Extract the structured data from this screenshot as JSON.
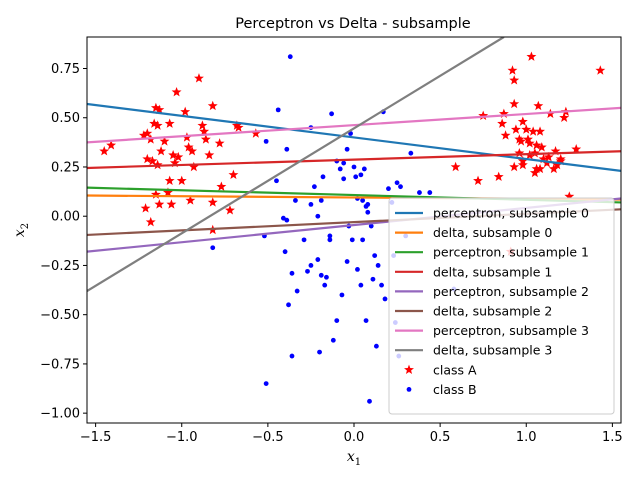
{
  "chart_data": {
    "type": "scatter",
    "title": "Perceptron vs Delta - subsample",
    "xlabel": "x",
    "xlabel_sub": "1",
    "ylabel": "x",
    "ylabel_sub": "2",
    "xlim": [
      -1.55,
      1.55
    ],
    "ylim": [
      -1.05,
      0.91
    ],
    "x_ticks": [
      -1.5,
      -1.0,
      -0.5,
      0.0,
      0.5,
      1.0,
      1.5
    ],
    "x_tick_labels": [
      "−1.5",
      "−1.0",
      "−0.5",
      "0.0",
      "0.5",
      "1.0",
      "1.5"
    ],
    "y_ticks": [
      -1.0,
      -0.75,
      -0.5,
      -0.25,
      0.0,
      0.25,
      0.5,
      0.75
    ],
    "y_tick_labels": [
      "−1.00",
      "−0.75",
      "−0.50",
      "−0.25",
      "0.00",
      "0.25",
      "0.50",
      "0.75"
    ],
    "grid": false,
    "legend_position": "lower-right",
    "lines": [
      {
        "name": "perceptron, subsample 0",
        "color": "#1f77b4",
        "x": [
          -1.55,
          1.55
        ],
        "y": [
          0.57,
          0.23
        ]
      },
      {
        "name": "delta, subsample 0",
        "color": "#ff7f0e",
        "x": [
          -1.55,
          1.55
        ],
        "y": [
          0.105,
          0.085
        ]
      },
      {
        "name": "perceptron, subsample 1",
        "color": "#2ca02c",
        "x": [
          -1.55,
          1.55
        ],
        "y": [
          0.145,
          0.07
        ]
      },
      {
        "name": "delta, subsample 1",
        "color": "#d62728",
        "x": [
          -1.55,
          1.55
        ],
        "y": [
          0.245,
          0.33
        ]
      },
      {
        "name": "perceptron, subsample 2",
        "color": "#9467bd",
        "x": [
          -1.55,
          1.55
        ],
        "y": [
          -0.18,
          0.09
        ]
      },
      {
        "name": "delta, subsample 2",
        "color": "#8c564b",
        "x": [
          -1.55,
          1.55
        ],
        "y": [
          -0.095,
          0.035
        ]
      },
      {
        "name": "perceptron, subsample 3",
        "color": "#e377c2",
        "x": [
          -1.55,
          1.55
        ],
        "y": [
          0.375,
          0.55
        ]
      },
      {
        "name": "delta, subsample 3",
        "color": "#7f7f7f",
        "x": [
          -1.55,
          0.87
        ],
        "y": [
          -0.38,
          0.91
        ]
      }
    ],
    "series": [
      {
        "name": "class A",
        "marker": "star",
        "color": "#ff0000",
        "points": [
          [
            -1.45,
            0.33
          ],
          [
            -1.41,
            0.36
          ],
          [
            -1.22,
            0.41
          ],
          [
            -1.2,
            0.42
          ],
          [
            -1.18,
            0.39
          ],
          [
            -1.16,
            0.47
          ],
          [
            -1.15,
            0.55
          ],
          [
            -1.13,
            0.54
          ],
          [
            -1.14,
            0.46
          ],
          [
            -1.12,
            0.33
          ],
          [
            -1.2,
            0.29
          ],
          [
            -1.17,
            0.28
          ],
          [
            -1.14,
            0.26
          ],
          [
            -1.07,
            0.47
          ],
          [
            -1.03,
            0.63
          ],
          [
            -0.98,
            0.53
          ],
          [
            -0.97,
            0.4
          ],
          [
            -0.96,
            0.35
          ],
          [
            -0.94,
            0.33
          ],
          [
            -0.9,
            0.7
          ],
          [
            -0.88,
            0.46
          ],
          [
            -0.87,
            0.43
          ],
          [
            -0.86,
            0.39
          ],
          [
            -0.84,
            0.31
          ],
          [
            -0.82,
            0.56
          ],
          [
            -0.78,
            0.37
          ],
          [
            -0.77,
            0.15
          ],
          [
            -0.72,
            0.03
          ],
          [
            -0.7,
            0.21
          ],
          [
            -0.68,
            0.46
          ],
          [
            -0.67,
            0.45
          ],
          [
            -0.57,
            0.42
          ],
          [
            -1.05,
            0.31
          ],
          [
            -1.04,
            0.27
          ],
          [
            -1.02,
            0.3
          ],
          [
            -1.0,
            0.18
          ],
          [
            -1.07,
            0.18
          ],
          [
            -1.08,
            0.12
          ],
          [
            -1.06,
            0.06
          ],
          [
            -1.13,
            0.06
          ],
          [
            -1.15,
            0.11
          ],
          [
            -1.18,
            -0.03
          ],
          [
            -1.21,
            0.04
          ],
          [
            -0.93,
            0.25
          ],
          [
            -0.82,
            0.07
          ],
          [
            -0.82,
            -0.07
          ],
          [
            -1.1,
            0.38
          ],
          [
            -0.95,
            0.08
          ],
          [
            0.59,
            0.25
          ],
          [
            0.72,
            0.18
          ],
          [
            0.75,
            0.51
          ],
          [
            0.84,
            0.2
          ],
          [
            0.86,
            0.47
          ],
          [
            0.87,
            0.52
          ],
          [
            0.88,
            0.41
          ],
          [
            0.92,
            0.74
          ],
          [
            0.93,
            0.69
          ],
          [
            0.93,
            0.57
          ],
          [
            0.94,
            0.44
          ],
          [
            0.96,
            0.39
          ],
          [
            0.97,
            0.38
          ],
          [
            0.98,
            0.48
          ],
          [
            1.0,
            0.44
          ],
          [
            1.01,
            0.39
          ],
          [
            1.03,
            0.81
          ],
          [
            1.04,
            0.43
          ],
          [
            1.05,
            0.32
          ],
          [
            1.06,
            0.36
          ],
          [
            1.07,
            0.56
          ],
          [
            1.08,
            0.43
          ],
          [
            1.09,
            0.35
          ],
          [
            1.1,
            0.29
          ],
          [
            1.12,
            0.27
          ],
          [
            1.14,
            0.52
          ],
          [
            1.16,
            0.24
          ],
          [
            1.18,
            0.26
          ],
          [
            1.2,
            0.28
          ],
          [
            1.22,
            0.5
          ],
          [
            1.23,
            0.53
          ],
          [
            1.25,
            0.1
          ],
          [
            1.29,
            0.34
          ],
          [
            1.43,
            0.74
          ],
          [
            0.93,
            0.25
          ],
          [
            0.98,
            0.28
          ],
          [
            1.02,
            0.31
          ],
          [
            1.05,
            0.22
          ],
          [
            1.08,
            0.24
          ],
          [
            1.13,
            0.3
          ],
          [
            1.17,
            0.33
          ],
          [
            1.06,
            0.24
          ],
          [
            0.96,
            0.32
          ],
          [
            0.91,
            -0.18
          ],
          [
            0.98,
            0.26
          ],
          [
            1.2,
            0.29
          ],
          [
            1.02,
            0.37
          ]
        ]
      },
      {
        "name": "class B",
        "marker": "dot",
        "color": "#0000ff",
        "points": [
          [
            -0.37,
            0.81
          ],
          [
            -0.44,
            0.54
          ],
          [
            -0.51,
            0.38
          ],
          [
            -0.45,
            0.18
          ],
          [
            -0.39,
            0.34
          ],
          [
            -0.25,
            0.45
          ],
          [
            -0.25,
            0.06
          ],
          [
            -0.23,
            0.15
          ],
          [
            -0.21,
            0.0
          ],
          [
            -0.19,
            0.08
          ],
          [
            -0.18,
            0.2
          ],
          [
            -0.14,
            -0.1
          ],
          [
            -0.14,
            -0.12
          ],
          [
            -0.13,
            0.52
          ],
          [
            -0.1,
            0.28
          ],
          [
            -0.08,
            0.24
          ],
          [
            -0.06,
            0.19
          ],
          [
            -0.04,
            0.34
          ],
          [
            -0.02,
            0.42
          ],
          [
            0.0,
            0.25
          ],
          [
            0.01,
            0.2
          ],
          [
            0.02,
            0.09
          ],
          [
            0.04,
            0.21
          ],
          [
            0.05,
            0.08
          ],
          [
            0.06,
            0.24
          ],
          [
            0.07,
            0.05
          ],
          [
            0.08,
            0.02
          ],
          [
            0.1,
            -0.05
          ],
          [
            0.12,
            -0.2
          ],
          [
            0.14,
            -0.25
          ],
          [
            0.17,
            0.53
          ],
          [
            0.2,
            0.14
          ],
          [
            0.22,
            0.07
          ],
          [
            0.25,
            0.17
          ],
          [
            0.27,
            0.15
          ],
          [
            0.3,
            -0.1
          ],
          [
            0.33,
            0.32
          ],
          [
            0.38,
            0.12
          ],
          [
            0.44,
            0.12
          ],
          [
            0.58,
            -0.37
          ],
          [
            -0.41,
            -0.01
          ],
          [
            -0.39,
            -0.02
          ],
          [
            -0.4,
            -0.18
          ],
          [
            -0.36,
            -0.29
          ],
          [
            -0.33,
            -0.38
          ],
          [
            -0.38,
            -0.45
          ],
          [
            -0.36,
            -0.71
          ],
          [
            -0.29,
            -0.12
          ],
          [
            -0.27,
            -0.28
          ],
          [
            -0.25,
            -0.25
          ],
          [
            -0.21,
            -0.22
          ],
          [
            -0.19,
            -0.3
          ],
          [
            -0.17,
            -0.35
          ],
          [
            -0.16,
            -0.31
          ],
          [
            -0.12,
            -0.63
          ],
          [
            -0.1,
            -0.53
          ],
          [
            -0.07,
            -0.4
          ],
          [
            -0.04,
            -0.23
          ],
          [
            -0.03,
            -0.05
          ],
          [
            -0.01,
            -0.12
          ],
          [
            0.02,
            -0.27
          ],
          [
            0.04,
            -0.35
          ],
          [
            0.07,
            -0.53
          ],
          [
            0.09,
            -0.94
          ],
          [
            0.11,
            -0.32
          ],
          [
            0.13,
            -0.66
          ],
          [
            0.18,
            -0.42
          ],
          [
            0.24,
            -0.54
          ],
          [
            0.26,
            -0.71
          ],
          [
            -0.51,
            -0.85
          ],
          [
            -0.52,
            -0.1
          ],
          [
            -0.82,
            -0.16
          ],
          [
            -0.2,
            -0.69
          ],
          [
            0.05,
            -0.12
          ],
          [
            -0.34,
            0.08
          ],
          [
            0.16,
            -0.35
          ],
          [
            0.08,
            0.06
          ],
          [
            -0.06,
            0.27
          ],
          [
            0.23,
            -0.2
          ]
        ]
      }
    ]
  }
}
